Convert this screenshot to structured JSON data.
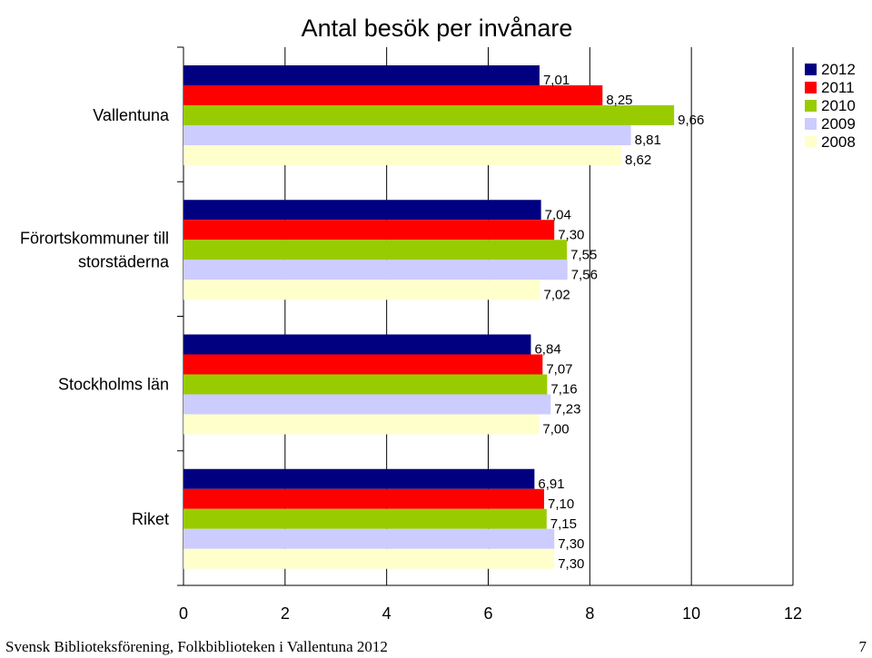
{
  "footer": {
    "text": "Svensk Biblioteksförening, Folkbiblioteken i Vallentuna 2012",
    "page": "7"
  },
  "chart_data": {
    "type": "bar",
    "orientation": "horizontal",
    "title": "Antal besök per invånare",
    "categories": [
      "Vallentuna",
      "Förortskommuner till storstäderna",
      "Stockholms län",
      "Riket"
    ],
    "category_lines": [
      [
        "Vallentuna"
      ],
      [
        "Förortskommuner till",
        "storstäderna"
      ],
      [
        "Stockholms län"
      ],
      [
        "Riket"
      ]
    ],
    "series": [
      {
        "name": "2012",
        "color": "#000080",
        "values": [
          7.01,
          7.04,
          6.84,
          6.91
        ],
        "labels": [
          "7,01",
          "7,04",
          "6,84",
          "6,91"
        ]
      },
      {
        "name": "2011",
        "color": "#ff0000",
        "values": [
          8.25,
          7.3,
          7.07,
          7.1
        ],
        "labels": [
          "8,25",
          "7,30",
          "7,07",
          "7,10"
        ]
      },
      {
        "name": "2010",
        "color": "#99cc00",
        "values": [
          9.66,
          7.55,
          7.16,
          7.15
        ],
        "labels": [
          "9,66",
          "7,55",
          "7,16",
          "7,15"
        ]
      },
      {
        "name": "2009",
        "color": "#ccccff",
        "values": [
          8.81,
          7.56,
          7.23,
          7.3
        ],
        "labels": [
          "8,81",
          "7,56",
          "7,23",
          "7,30"
        ]
      },
      {
        "name": "2008",
        "color": "#ffffcc",
        "values": [
          8.62,
          7.02,
          7.0,
          7.3
        ],
        "labels": [
          "8,62",
          "7,02",
          "7,00",
          "7,30"
        ]
      }
    ],
    "xlim": [
      0,
      12
    ],
    "xticks": [
      0,
      2,
      4,
      6,
      8,
      10,
      12
    ],
    "xlabel": "",
    "ylabel": "",
    "grid": true,
    "legend_position": "top-right"
  }
}
